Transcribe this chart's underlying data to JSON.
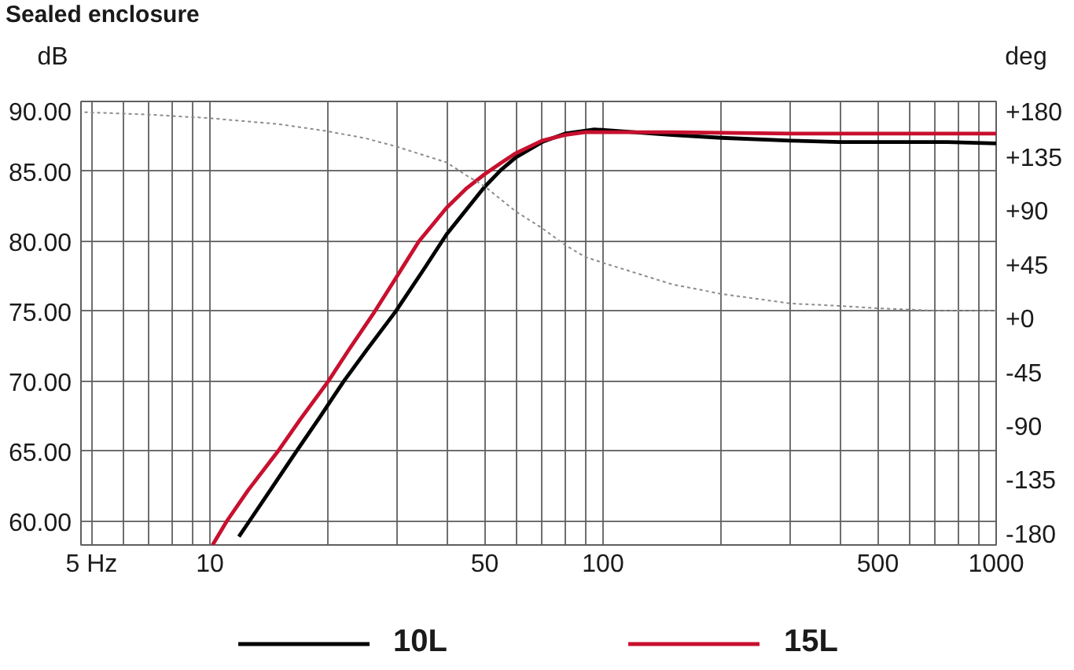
{
  "chart_data": {
    "type": "line",
    "title": "Sealed enclosure",
    "ylabel": "dB",
    "y2label": "deg",
    "log": "x",
    "grid": true,
    "legend": "bottom",
    "xlim": [
      4.7,
      1000
    ],
    "xticks": [
      {
        "value": 5,
        "label": "5 Hz"
      },
      {
        "value": 6,
        "label": null
      },
      {
        "value": 7,
        "label": null
      },
      {
        "value": 8,
        "label": null
      },
      {
        "value": 9,
        "label": null
      },
      10,
      {
        "value": 20,
        "label": null
      },
      {
        "value": 30,
        "label": null
      },
      {
        "value": 40,
        "label": null
      },
      50,
      {
        "value": 60,
        "label": null
      },
      {
        "value": 70,
        "label": null
      },
      {
        "value": 80,
        "label": null
      },
      {
        "value": 90,
        "label": null
      },
      100,
      {
        "value": 200,
        "label": null
      },
      {
        "value": 300,
        "label": null
      },
      {
        "value": 400,
        "label": null
      },
      500,
      {
        "value": 600,
        "label": null
      },
      {
        "value": 700,
        "label": null
      },
      {
        "value": 800,
        "label": null
      },
      {
        "value": 900,
        "label": null
      },
      1000
    ],
    "ylim": [
      58.3,
      90
    ],
    "yticks": [
      {
        "value": 60,
        "label": "60.00"
      },
      {
        "value": 65,
        "label": "65.00"
      },
      {
        "value": 70,
        "label": "70.00"
      },
      {
        "value": 75,
        "label": "75.00"
      },
      {
        "value": 80,
        "label": "80.00"
      },
      {
        "value": 85,
        "label": "85.00"
      },
      {
        "value": 90,
        "label": "90.00"
      }
    ],
    "y2lim": [
      -190,
      181
    ],
    "y2ticks": [
      -180,
      -135,
      -90,
      -45,
      {
        "value": 0,
        "label": "+0"
      },
      {
        "value": 45,
        "label": "+45"
      },
      {
        "value": 90,
        "label": "+90"
      },
      {
        "value": 135,
        "label": "+135"
      },
      {
        "value": 180,
        "label": "+180"
      }
    ],
    "series": [
      {
        "name": "10L",
        "color": "#000000",
        "x": [
          11.85,
          12.6,
          14,
          16.6,
          19,
          21.9,
          25,
          29.7,
          35,
          40,
          45,
          50,
          55,
          60,
          70,
          80,
          95,
          120,
          150,
          200,
          300,
          400,
          600,
          750,
          1000
        ],
        "values": [
          58.9,
          60,
          61.9,
          65,
          67.4,
          70,
          72.2,
          75,
          78,
          80.5,
          82.3,
          83.9,
          85.1,
          86,
          87.1,
          87.7,
          88,
          87.8,
          87.6,
          87.4,
          87.2,
          87.1,
          87.1,
          87.1,
          87
        ]
      },
      {
        "name": "15L",
        "color": "#c8102e",
        "x": [
          10.16,
          11.04,
          12.5,
          14.9,
          17,
          20,
          22.5,
          26,
          29.3,
          34,
          40,
          45,
          50,
          55,
          60,
          70,
          80,
          90,
          100,
          150,
          300,
          600,
          1000
        ],
        "values": [
          58.3,
          60,
          62.2,
          65,
          67.3,
          70,
          72.2,
          74.8,
          77.1,
          80,
          82.4,
          83.8,
          84.8,
          85.6,
          86.3,
          87.2,
          87.6,
          87.8,
          87.8,
          87.8,
          87.7,
          87.7,
          87.7
        ]
      },
      {
        "color": "#8c8c8c",
        "axis": "y2",
        "line_style": "dotted",
        "x": [
          4.8,
          7,
          10,
          15,
          20,
          25,
          30,
          35,
          40,
          45,
          50,
          55,
          60,
          70,
          80,
          90,
          100,
          150,
          200,
          300,
          400,
          500,
          700,
          1000
        ],
        "values": [
          172,
          170,
          167,
          162,
          156,
          150,
          143,
          136,
          130,
          119,
          110,
          99,
          89,
          75,
          61,
          51,
          46,
          28,
          20,
          12,
          10,
          8,
          6,
          6
        ]
      }
    ]
  }
}
